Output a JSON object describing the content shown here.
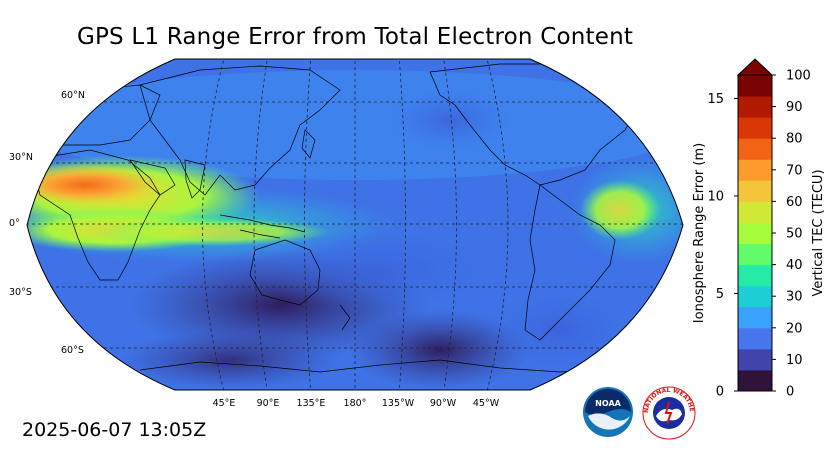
{
  "title": "GPS L1 Range Error from Total Electron Content",
  "timestamp": "2025-06-07 13:05Z",
  "map": {
    "projection": "Robinson",
    "central_longitude": "180°",
    "lat_labels": [
      "60°N",
      "30°N",
      "0°",
      "30°S",
      "60°S"
    ],
    "lon_labels": [
      "45°E",
      "90°E",
      "135°E",
      "180°",
      "135°W",
      "90°W",
      "45°W"
    ]
  },
  "colorbar": {
    "left_label": "Ionosphere Range Error (m)",
    "right_label": "Vertical TEC (TECU)",
    "left_ticks": [
      "0",
      "5",
      "10",
      "15"
    ],
    "right_ticks": [
      "0",
      "10",
      "20",
      "30",
      "40",
      "50",
      "60",
      "70",
      "80",
      "90",
      "100"
    ],
    "range_tecu": [
      0,
      100
    ],
    "range_m": [
      0,
      16.2
    ],
    "extend": "max",
    "colors": [
      "#30123b",
      "#4145ab",
      "#4675ed",
      "#39a2fc",
      "#1bcfd4",
      "#24eca6",
      "#61fc6c",
      "#a4fc3b",
      "#d1e834",
      "#f3c63a",
      "#fe9b2d",
      "#f36315",
      "#d93806",
      "#b11901",
      "#7a0403"
    ]
  },
  "logos": {
    "noaa": "NOAA",
    "nws": "NATIONAL WEATHER SERVICE"
  }
}
